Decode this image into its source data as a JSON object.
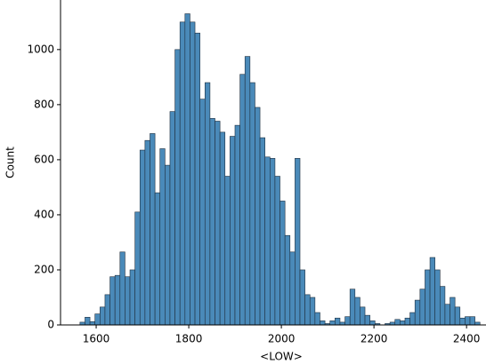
{
  "chart_data": {
    "type": "histogram",
    "xlabel": "<LOW>",
    "ylabel": "Count",
    "color": "#4a8ab9",
    "edgecolor": "#1f2f3f",
    "bins": [
      1565,
      1575.8,
      1586.6,
      1597.4,
      1608.2,
      1619,
      1629.8,
      1640.6,
      1651.4,
      1662.2,
      1673,
      1683.8,
      1694.6,
      1705.4,
      1716.2,
      1727,
      1737.8,
      1748.6,
      1759.4,
      1770.2,
      1781,
      1791.8,
      1802.6,
      1813.4,
      1824.2,
      1835,
      1845.8,
      1856.6,
      1867.4,
      1878.2,
      1889,
      1899.8,
      1910.6,
      1921.4,
      1932.2,
      1943,
      1953.8,
      1964.6,
      1975.4,
      1986.2,
      1997,
      2007.8,
      2018.6,
      2029.4,
      2040.2,
      2051,
      2061.8,
      2072.6,
      2083.4,
      2094.2,
      2105,
      2115.8,
      2126.6,
      2137.4,
      2148.2,
      2159,
      2169.8,
      2180.6,
      2191.4,
      2202.2,
      2213,
      2223.8,
      2234.6,
      2245.4,
      2256.2,
      2267,
      2277.8,
      2288.6,
      2299.4,
      2310.2,
      2321,
      2331.8,
      2342.6,
      2353.4,
      2364.2,
      2375,
      2385.8,
      2396.6,
      2407.4,
      2418.2,
      2429
    ],
    "values": [
      10,
      28,
      12,
      40,
      65,
      110,
      175,
      180,
      265,
      175,
      200,
      410,
      635,
      670,
      695,
      480,
      640,
      580,
      775,
      1000,
      1100,
      1130,
      1100,
      1060,
      820,
      880,
      750,
      740,
      700,
      540,
      685,
      725,
      910,
      975,
      880,
      790,
      680,
      610,
      605,
      540,
      450,
      325,
      265,
      605,
      200,
      110,
      100,
      45,
      15,
      5,
      15,
      25,
      10,
      30,
      130,
      100,
      65,
      35,
      15,
      5,
      0,
      5,
      10,
      20,
      15,
      25,
      45,
      90,
      130,
      200,
      245,
      200,
      140,
      75,
      100,
      65,
      25,
      30,
      30,
      10
    ],
    "xlim": [
      1523,
      2442
    ],
    "ylim": [
      0,
      1180
    ],
    "xticks": [
      1600,
      1800,
      2000,
      2200,
      2400
    ],
    "yticks": [
      0,
      200,
      400,
      600,
      800,
      1000
    ]
  }
}
